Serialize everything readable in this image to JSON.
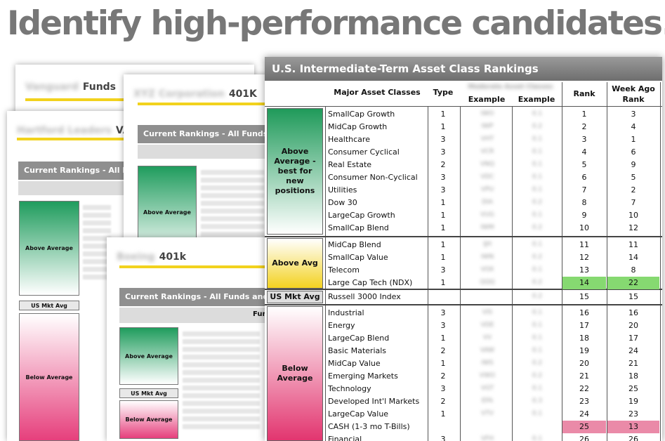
{
  "headline": "Identify high-performance candidates.",
  "cards": {
    "vanguard": {
      "name_blur": "Vanguard",
      "label": "Funds"
    },
    "hartford": {
      "name_blur": "Hartford Leaders",
      "label": "VA",
      "bar": "Current Rankings - All Fu",
      "above": "Above Average",
      "mkt": "US Mkt Avg",
      "below": "Below Average"
    },
    "xyz": {
      "name_blur": "XYZ Corporation",
      "label": "401K",
      "bar": "Current Rankings - All Funds a",
      "above": "Above Average"
    },
    "boeing": {
      "name_blur": "Boeing",
      "label": "401k",
      "bar": "Current Rankings - All Funds and E",
      "subbar": "Fun",
      "above": "Above Average",
      "mkt": "US Mkt Avg",
      "below": "Below Average"
    }
  },
  "table": {
    "title": "U.S. Intermediate-Term Asset Class Rankings",
    "headers": {
      "major": "Major Asset Classes",
      "type": "Type",
      "example_blur": "Moderate Asset Classes",
      "example1": "Example",
      "example2": "Example",
      "rank": "Rank",
      "week_ago": "Week Ago Rank"
    },
    "groups": {
      "above": "Above Average - best for new positions",
      "avg": "Above Avg",
      "mkt": "US Mkt Avg",
      "below": "Below Average"
    },
    "rows": [
      {
        "name": "SmallCap Growth",
        "type": "1",
        "ex1": "IWO",
        "ex2": "0.1",
        "rank": "1",
        "wk": "3"
      },
      {
        "name": "MidCap Growth",
        "type": "1",
        "ex1": "IWP",
        "ex2": "0.2",
        "rank": "2",
        "wk": "4"
      },
      {
        "name": "Healthcare",
        "type": "3",
        "ex1": "VHT",
        "ex2": "0.1",
        "rank": "3",
        "wk": "1"
      },
      {
        "name": "Consumer Cyclical",
        "type": "3",
        "ex1": "VCR",
        "ex2": "0.1",
        "rank": "4",
        "wk": "6"
      },
      {
        "name": "Real Estate",
        "type": "2",
        "ex1": "VNQ",
        "ex2": "0.1",
        "rank": "5",
        "wk": "9"
      },
      {
        "name": "Consumer Non-Cyclical",
        "type": "3",
        "ex1": "VDC",
        "ex2": "0.1",
        "rank": "6",
        "wk": "5"
      },
      {
        "name": "Utilities",
        "type": "3",
        "ex1": "VPU",
        "ex2": "0.1",
        "rank": "7",
        "wk": "2"
      },
      {
        "name": "Dow 30",
        "type": "1",
        "ex1": "DIA",
        "ex2": "0.2",
        "rank": "8",
        "wk": "7"
      },
      {
        "name": "LargeCap Growth",
        "type": "1",
        "ex1": "VUG",
        "ex2": "0.1",
        "rank": "9",
        "wk": "10"
      },
      {
        "name": "SmallCap Blend",
        "type": "1",
        "ex1": "IWM",
        "ex2": "0.2",
        "rank": "10",
        "wk": "12"
      },
      {
        "name": "MidCap Blend",
        "type": "1",
        "ex1": "IJH",
        "ex2": "0.1",
        "rank": "11",
        "wk": "11"
      },
      {
        "name": "SmallCap Value",
        "type": "1",
        "ex1": "IWN",
        "ex2": "0.2",
        "rank": "12",
        "wk": "14"
      },
      {
        "name": "Telecom",
        "type": "3",
        "ex1": "VOX",
        "ex2": "0.1",
        "rank": "13",
        "wk": "8"
      },
      {
        "name": "Large Cap Tech (NDX)",
        "type": "1",
        "ex1": "QQQ",
        "ex2": "0.2",
        "rank": "14",
        "wk": "22"
      },
      {
        "name": "Russell 3000 Index",
        "type": "",
        "ex1": "",
        "ex2": "0.2",
        "rank": "15",
        "wk": "15"
      },
      {
        "name": "Industrial",
        "type": "3",
        "ex1": "VIS",
        "ex2": "0.1",
        "rank": "16",
        "wk": "16"
      },
      {
        "name": "Energy",
        "type": "3",
        "ex1": "VDE",
        "ex2": "0.1",
        "rank": "17",
        "wk": "20"
      },
      {
        "name": "LargeCap Blend",
        "type": "1",
        "ex1": "VV",
        "ex2": "0.1",
        "rank": "18",
        "wk": "17"
      },
      {
        "name": "Basic Materials",
        "type": "2",
        "ex1": "VAW",
        "ex2": "0.1",
        "rank": "19",
        "wk": "24"
      },
      {
        "name": "MidCap Value",
        "type": "1",
        "ex1": "IWS",
        "ex2": "0.2",
        "rank": "20",
        "wk": "21"
      },
      {
        "name": "Emerging Markets",
        "type": "2",
        "ex1": "VWO",
        "ex2": "0.2",
        "rank": "21",
        "wk": "18"
      },
      {
        "name": "Technology",
        "type": "3",
        "ex1": "VGT",
        "ex2": "0.1",
        "rank": "22",
        "wk": "25"
      },
      {
        "name": "Developed Int'l Markets",
        "type": "2",
        "ex1": "EFA",
        "ex2": "0.3",
        "rank": "23",
        "wk": "19"
      },
      {
        "name": "LargeCap Value",
        "type": "1",
        "ex1": "VTV",
        "ex2": "0.1",
        "rank": "24",
        "wk": "23"
      },
      {
        "name": "CASH (1-3 mo T-Bills)",
        "type": "",
        "ex1": "",
        "ex2": "",
        "rank": "25",
        "wk": "13"
      },
      {
        "name": "Financial",
        "type": "3",
        "ex1": "VFH",
        "ex2": "0.1",
        "rank": "26",
        "wk": "26"
      }
    ],
    "highlight_colors": {
      "green": "#86d971",
      "pink": "#ea8aa8"
    }
  }
}
